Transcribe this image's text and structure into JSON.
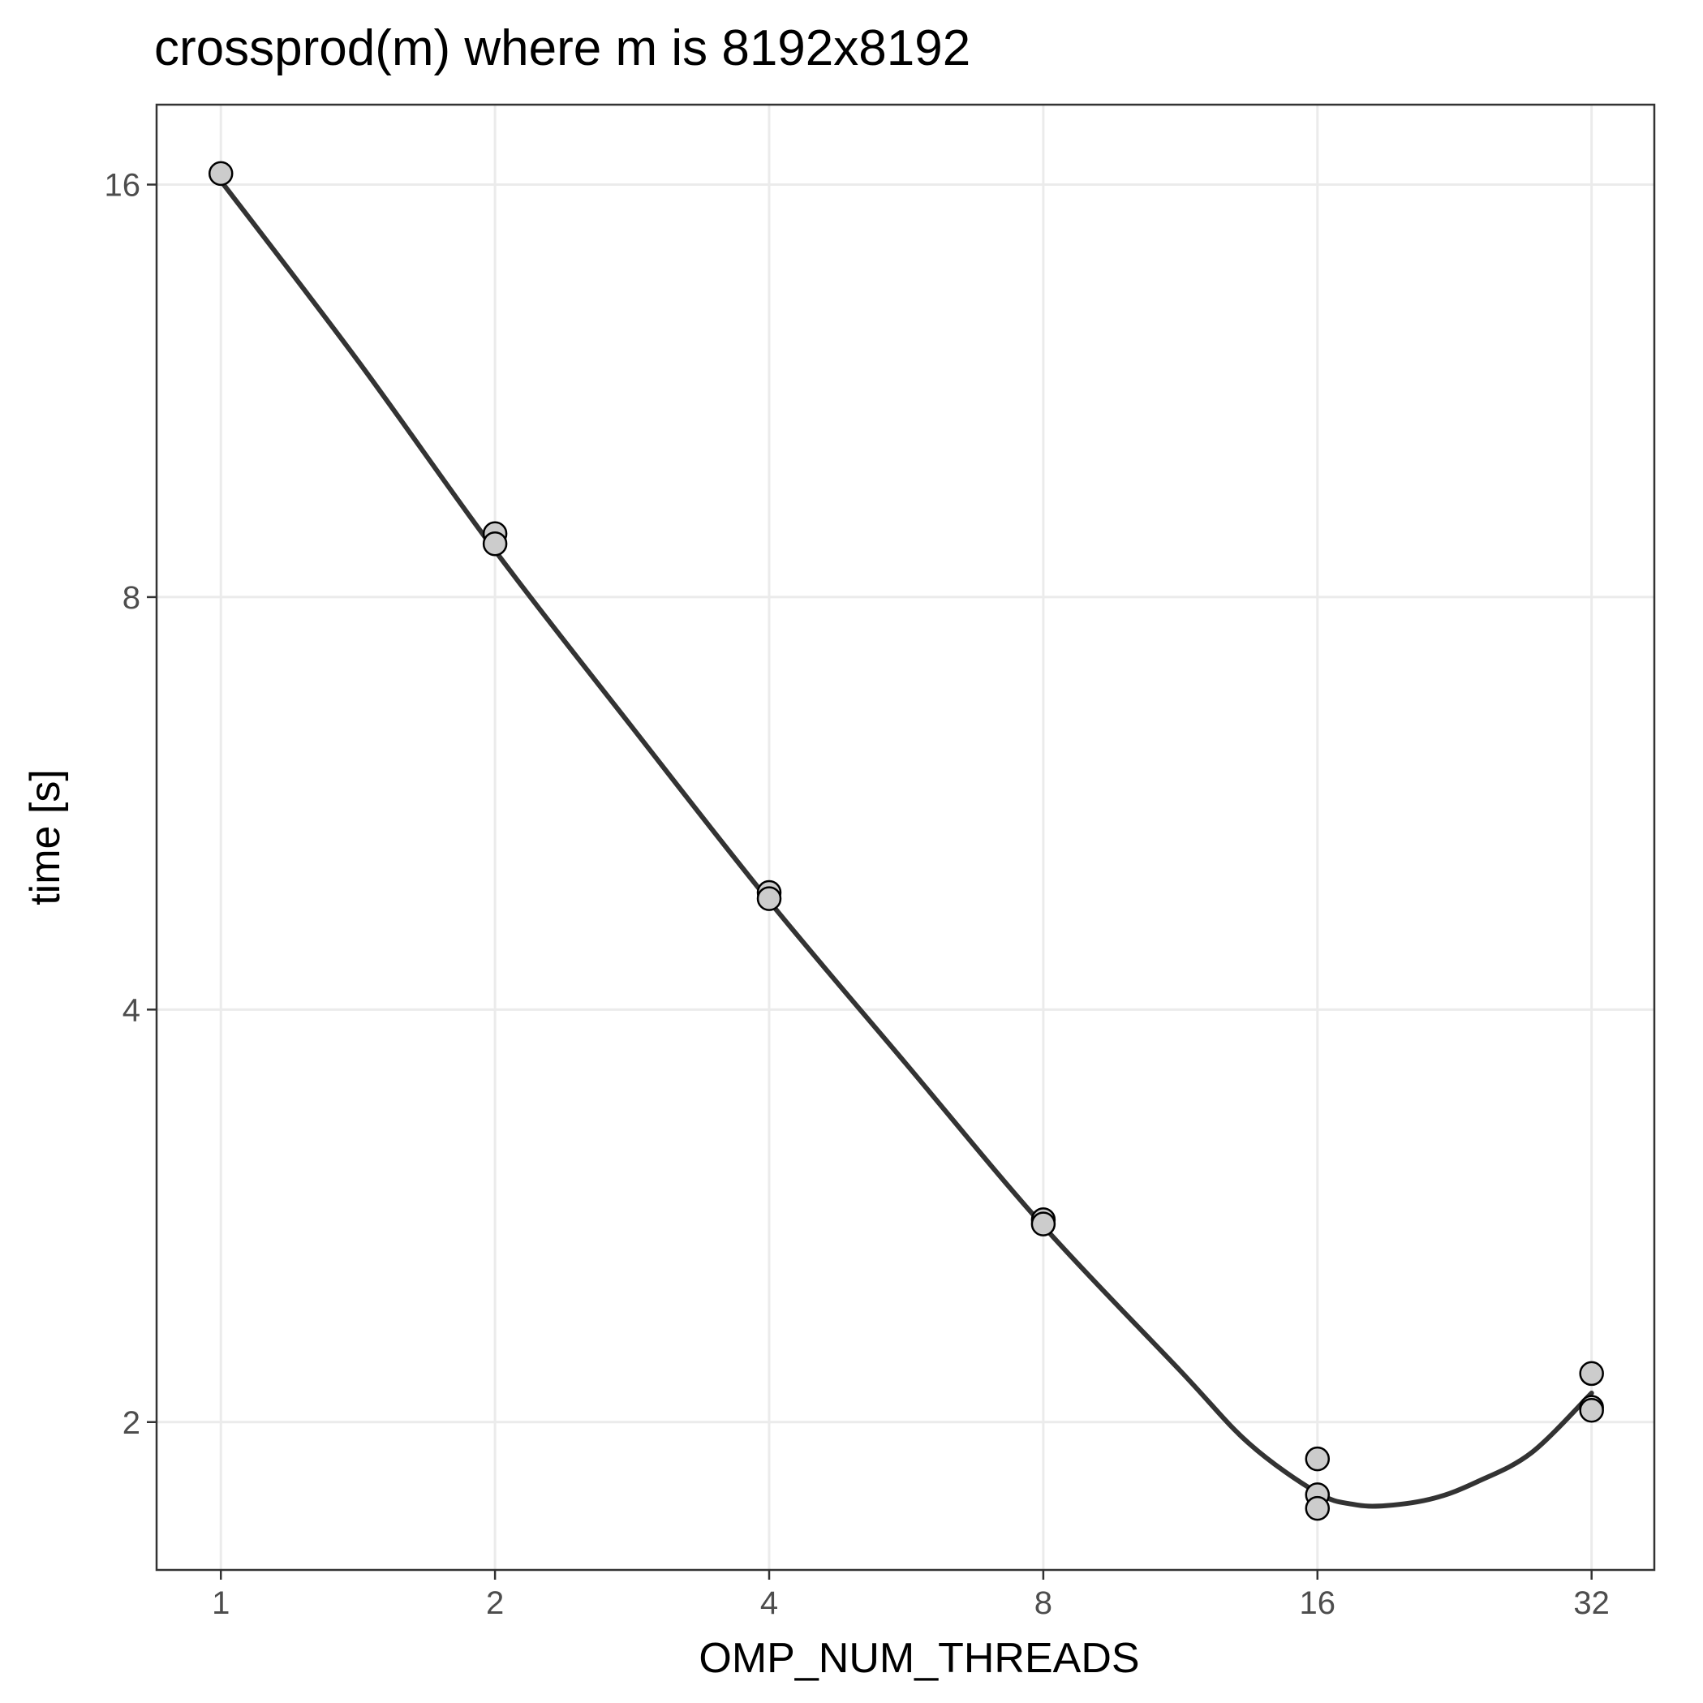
{
  "chart_data": {
    "type": "scatter",
    "title": "crossprod(m) where m is 8192x8192",
    "xlabel": "OMP_NUM_THREADS",
    "ylabel": "time [s]",
    "x_scale": "log2",
    "y_scale": "log2",
    "xlim": [
      0.85,
      37.5
    ],
    "ylim": [
      1.56,
      18.3
    ],
    "x_ticks": [
      1,
      2,
      4,
      8,
      16,
      32
    ],
    "x_tick_labels": [
      "1",
      "2",
      "4",
      "8",
      "16",
      "32"
    ],
    "y_ticks": [
      2,
      4,
      8,
      16
    ],
    "y_tick_labels": [
      "2",
      "4",
      "8",
      "16"
    ],
    "grid": true,
    "points": [
      {
        "x": 1,
        "y": 16.3
      },
      {
        "x": 2,
        "y": 8.9
      },
      {
        "x": 2,
        "y": 8.75
      },
      {
        "x": 4,
        "y": 4.87
      },
      {
        "x": 4,
        "y": 4.82
      },
      {
        "x": 8,
        "y": 2.81
      },
      {
        "x": 8,
        "y": 2.79
      },
      {
        "x": 16,
        "y": 1.88
      },
      {
        "x": 16,
        "y": 1.77
      },
      {
        "x": 16,
        "y": 1.73
      },
      {
        "x": 32,
        "y": 2.17
      },
      {
        "x": 32,
        "y": 2.05
      },
      {
        "x": 32,
        "y": 2.04
      }
    ],
    "smooth_line": {
      "x": [
        1,
        1.414,
        2,
        2.828,
        4,
        5.657,
        8,
        11.31,
        13.45,
        16,
        17.5,
        19.03,
        21.5,
        24.0,
        27.5,
        32
      ],
      "y": [
        16.1,
        11.9,
        8.65,
        6.43,
        4.8,
        3.65,
        2.78,
        2.18,
        1.93,
        1.776,
        1.742,
        1.738,
        1.76,
        1.81,
        1.9,
        2.1
      ]
    },
    "colors": {
      "point_fill": "#cccccc",
      "point_stroke": "#000000",
      "line": "#333333",
      "grid": "#ebebeb",
      "panel_border": "#333333"
    }
  }
}
